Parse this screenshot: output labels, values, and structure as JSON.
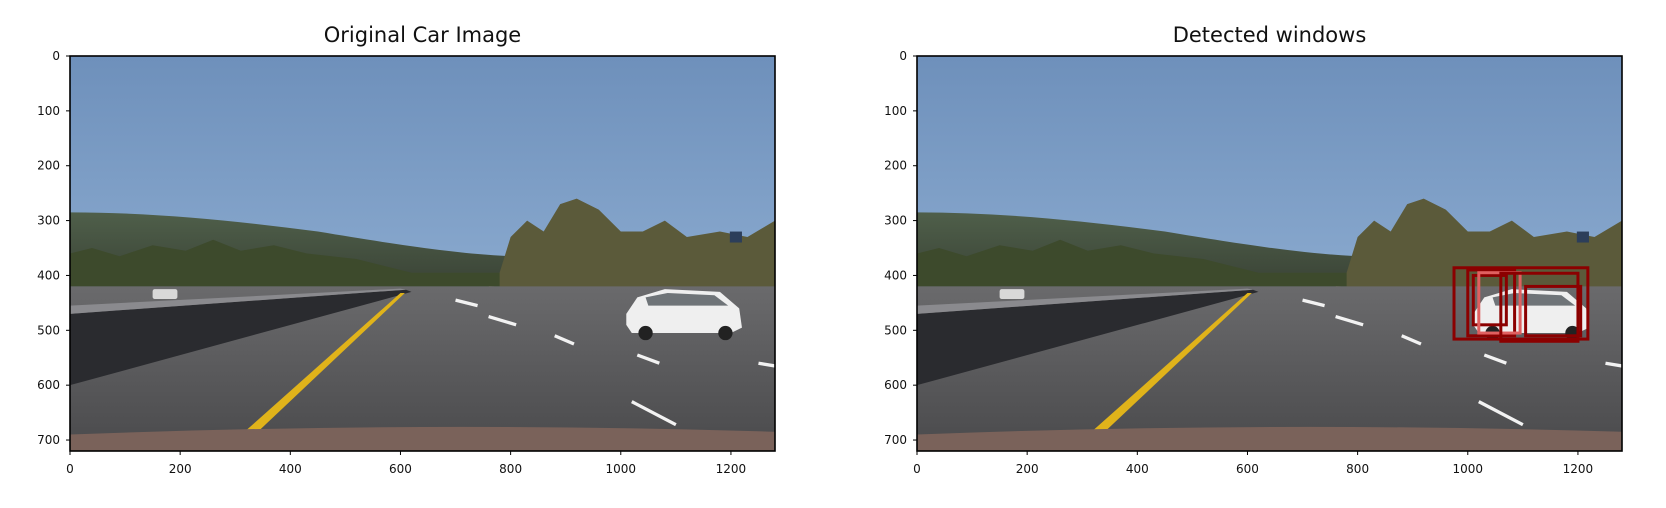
{
  "chart_data": [
    {
      "type": "image",
      "title": "Original Car Image",
      "xlim": [
        0,
        1280
      ],
      "ylim": [
        0,
        720
      ],
      "xticks": [
        0,
        200,
        400,
        600,
        800,
        1000,
        1200
      ],
      "yticks": [
        0,
        100,
        200,
        300,
        400,
        500,
        600,
        700
      ],
      "detected_windows": []
    },
    {
      "type": "image",
      "title": "Detected windows",
      "xlim": [
        0,
        1280
      ],
      "ylim": [
        0,
        720
      ],
      "xticks": [
        0,
        200,
        400,
        600,
        800,
        1000,
        1200
      ],
      "yticks": [
        0,
        100,
        200,
        300,
        400,
        500,
        600,
        700
      ],
      "detected_windows": [
        {
          "x1": 975,
          "y1": 386,
          "x2": 1218,
          "y2": 516
        },
        {
          "x1": 1000,
          "y1": 390,
          "x2": 1085,
          "y2": 510
        },
        {
          "x1": 1010,
          "y1": 400,
          "x2": 1070,
          "y2": 490
        },
        {
          "x1": 1020,
          "y1": 395,
          "x2": 1095,
          "y2": 505
        },
        {
          "x1": 1060,
          "y1": 396,
          "x2": 1200,
          "y2": 520
        },
        {
          "x1": 1105,
          "y1": 420,
          "x2": 1205,
          "y2": 510
        }
      ]
    }
  ],
  "colors": {
    "window_stroke": "#8b0000",
    "window_highlight": "#e06060",
    "sky_top": "#6e90bb",
    "sky_bottom": "#9dbbdc",
    "road": "#4a4a4c",
    "lane_yellow": "#e0b31a"
  }
}
